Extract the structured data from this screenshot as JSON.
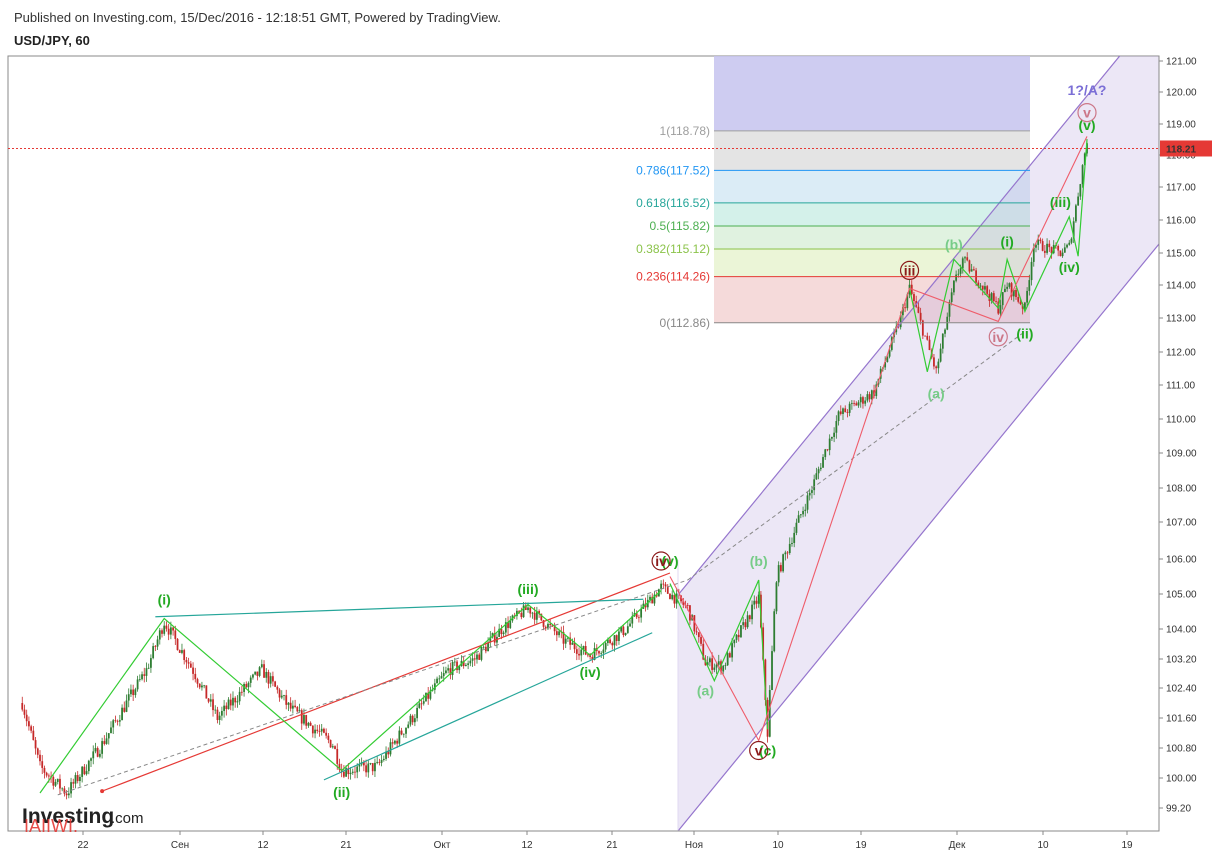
{
  "header": {
    "published": "Published on Investing.com, 15/Dec/2016 - 12:18:51 GMT, Powered by TradingView.",
    "symbol": "USD/JPY, 60"
  },
  "watermark": {
    "brand": "Investing",
    "suffix": ".com",
    "overlay": "IAIIWI."
  },
  "colors": {
    "bull": "#2e7d32",
    "bear": "#c62828",
    "wave": "#33cc33",
    "wave_label": "#22aa22",
    "wave_label_light": "#77cc88",
    "red_line": "#e53935",
    "teal_line": "#26a69a",
    "channel": "#9575cd",
    "price_line": "#e53935",
    "price_badge": "#e53935"
  },
  "chart_data": {
    "type": "candlestick",
    "title": "USD/JPY, 60",
    "y_axis": {
      "range": [
        98.9,
        121.2
      ],
      "ticks": [
        "121.00",
        "120.00",
        "119.00",
        "118.00",
        "117.00",
        "116.00",
        "115.00",
        "114.00",
        "113.00",
        "112.00",
        "111.00",
        "110.00",
        "109.00",
        "108.00",
        "107.00",
        "106.00",
        "105.00",
        "104.00",
        "103.20",
        "102.40",
        "101.60",
        "100.80",
        "100.00",
        "99.20"
      ]
    },
    "x_axis": {
      "ticks": [
        "22",
        "Сен",
        "12",
        "21",
        "Окт",
        "12",
        "21",
        "Ноя",
        "10",
        "19",
        "Дек",
        "10",
        "19"
      ]
    },
    "current_price": "118.21",
    "price_path_anchors": [
      [
        "Aug 17",
        102.0
      ],
      [
        "Aug 19",
        100.3
      ],
      [
        "Aug 22",
        99.6
      ],
      [
        "Aug 26",
        100.9
      ],
      [
        "Aug 31",
        102.9
      ],
      [
        "Sep 2",
        104.2
      ],
      [
        "Sep 5",
        103.0
      ],
      [
        "Sep 8",
        101.6
      ],
      [
        "Sep 13",
        102.9
      ],
      [
        "Sep 16",
        101.9
      ],
      [
        "Sep 21",
        100.9
      ],
      [
        "Sep 22",
        100.2
      ],
      [
        "Sep 26",
        100.3
      ],
      [
        "Sep 29",
        101.3
      ],
      [
        "Oct 4",
        102.9
      ],
      [
        "Oct 7",
        103.2
      ],
      [
        "Oct 10",
        104.0
      ],
      [
        "Oct 13",
        104.6
      ],
      [
        "Oct 17",
        103.7
      ],
      [
        "Oct 20",
        103.3
      ],
      [
        "Oct 24",
        104.0
      ],
      [
        "Oct 28",
        105.2
      ],
      [
        "Oct 31",
        104.6
      ],
      [
        "Nov 2",
        103.1
      ],
      [
        "Nov 4",
        103.0
      ],
      [
        "Nov 8",
        104.9
      ],
      [
        "Nov 9",
        101.2
      ],
      [
        "Nov 10",
        105.5
      ],
      [
        "Nov 14",
        108.0
      ],
      [
        "Nov 17",
        110.1
      ],
      [
        "Nov 21",
        110.8
      ],
      [
        "Nov 24",
        113.0
      ],
      [
        "Nov 25",
        113.9
      ],
      [
        "Nov 28",
        111.4
      ],
      [
        "Nov 30",
        114.0
      ],
      [
        "Dec 1",
        114.8
      ],
      [
        "Dec 5",
        113.3
      ],
      [
        "Dec 6",
        114.0
      ],
      [
        "Dec 8",
        113.3
      ],
      [
        "Dec 9",
        115.3
      ],
      [
        "Dec 12",
        115.0
      ],
      [
        "Dec 13",
        115.2
      ],
      [
        "Dec 14",
        116.8
      ],
      [
        "Dec 15",
        118.5
      ]
    ],
    "fibonacci": [
      {
        "label": "1(118.78)",
        "ratio": "1",
        "value": 118.78,
        "color": "#9e9e9e"
      },
      {
        "label": "0.786(117.52)",
        "ratio": "0.786",
        "value": 117.52,
        "color": "#2196f3"
      },
      {
        "label": "0.618(116.52)",
        "ratio": "0.618",
        "value": 116.52,
        "color": "#26a69a"
      },
      {
        "label": "0.5(115.82)",
        "ratio": "0.5",
        "value": 115.82,
        "color": "#4caf50"
      },
      {
        "label": "0.382(115.12)",
        "ratio": "0.382",
        "value": 115.12,
        "color": "#8bc34a"
      },
      {
        "label": "0.236(114.26)",
        "ratio": "0.236",
        "value": 114.26,
        "color": "#e53935"
      },
      {
        "label": "0(112.86)",
        "ratio": "0",
        "value": 112.86,
        "color": "#888888"
      }
    ],
    "wave_labels": [
      {
        "text": "(i)",
        "color": "#22aa22",
        "at": [
          "Sep 2",
          104.7
        ]
      },
      {
        "text": "(ii)",
        "color": "#22aa22",
        "at": [
          "Sep 22",
          99.5
        ]
      },
      {
        "text": "(iii)",
        "color": "#22aa22",
        "at": [
          "Oct 13",
          105.0
        ]
      },
      {
        "text": "(iv)",
        "color": "#22aa22",
        "at": [
          "Oct 20",
          102.7
        ]
      },
      {
        "text": "(v)",
        "color": "#22aa22",
        "at": [
          "Oct 29",
          105.8
        ]
      },
      {
        "text": "iv",
        "color": "#8b1a1a",
        "at": [
          "Oct 28",
          105.8
        ],
        "circle": true
      },
      {
        "text": "(a)",
        "color": "#77cc88",
        "at": [
          "Nov 2",
          102.2
        ]
      },
      {
        "text": "(b)",
        "color": "#77cc88",
        "at": [
          "Nov 8",
          105.8
        ]
      },
      {
        "text": "(c)",
        "color": "#22aa22",
        "at": [
          "Nov 9",
          100.6
        ]
      },
      {
        "text": "v",
        "color": "#8b1a1a",
        "at": [
          "Nov 8",
          100.6
        ],
        "circle": true
      },
      {
        "text": "iii",
        "color": "#8b1a1a",
        "at": [
          "Nov 25",
          114.3
        ],
        "circle": true
      },
      {
        "text": "(a)",
        "color": "#77cc88",
        "at": [
          "Nov 28",
          110.6
        ]
      },
      {
        "text": "(b)",
        "color": "#77cc88",
        "at": [
          "Nov 30",
          115.1
        ]
      },
      {
        "text": "iv",
        "color": "#cc7788",
        "at": [
          "Dec 5",
          112.3
        ],
        "circle": true
      },
      {
        "text": "(i)",
        "color": "#22aa22",
        "at": [
          "Dec 6",
          115.2
        ]
      },
      {
        "text": "(ii)",
        "color": "#22aa22",
        "at": [
          "Dec 8",
          112.4
        ]
      },
      {
        "text": "(iii)",
        "color": "#22aa22",
        "at": [
          "Dec 12",
          116.4
        ]
      },
      {
        "text": "(iv)",
        "color": "#22aa22",
        "at": [
          "Dec 13",
          114.4
        ]
      },
      {
        "text": "(v)",
        "color": "#22aa22",
        "at": [
          "Dec 15",
          118.8
        ]
      },
      {
        "text": "v",
        "color": "#cc7788",
        "at": [
          "Dec 15",
          119.2
        ],
        "circle": true
      },
      {
        "text": "1?/A?",
        "color": "#7b6fd6",
        "at": [
          "Dec 15",
          119.9
        ]
      }
    ]
  }
}
